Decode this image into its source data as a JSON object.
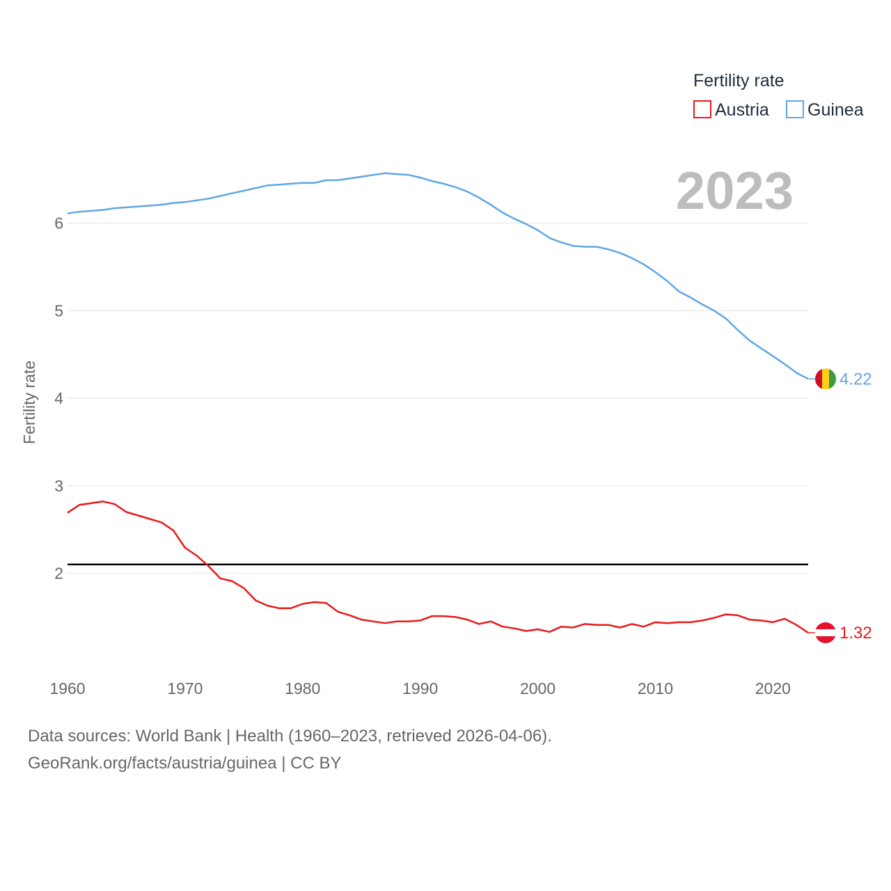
{
  "chart_data": {
    "type": "line",
    "year_label": "2023",
    "ylabel": "Fertility rate",
    "xlabel": "",
    "xlim": [
      1960,
      2023
    ],
    "ylim": [
      1.0,
      7.0
    ],
    "x_ticks": [
      1960,
      1970,
      1980,
      1990,
      2000,
      2010,
      2020
    ],
    "y_ticks": [
      2,
      3,
      4,
      5,
      6
    ],
    "legend": {
      "title": "Fertility rate",
      "position": "top-right"
    },
    "reference_line": {
      "value": 2.1,
      "color": "#000000"
    },
    "series": [
      {
        "name": "Austria",
        "color": "#e8191a",
        "end_value": 1.32,
        "end_label": "1.32",
        "flag": "austria-flag",
        "x": [
          1960,
          1961,
          1962,
          1963,
          1964,
          1965,
          1966,
          1967,
          1968,
          1969,
          1970,
          1971,
          1972,
          1973,
          1974,
          1975,
          1976,
          1977,
          1978,
          1979,
          1980,
          1981,
          1982,
          1983,
          1984,
          1985,
          1986,
          1987,
          1988,
          1989,
          1990,
          1991,
          1992,
          1993,
          1994,
          1995,
          1996,
          1997,
          1998,
          1999,
          2000,
          2001,
          2002,
          2003,
          2004,
          2005,
          2006,
          2007,
          2008,
          2009,
          2010,
          2011,
          2012,
          2013,
          2014,
          2015,
          2016,
          2017,
          2018,
          2019,
          2020,
          2021,
          2022,
          2023
        ],
        "values": [
          2.69,
          2.78,
          2.8,
          2.82,
          2.79,
          2.7,
          2.66,
          2.62,
          2.58,
          2.49,
          2.29,
          2.2,
          2.08,
          1.94,
          1.91,
          1.83,
          1.69,
          1.63,
          1.6,
          1.6,
          1.65,
          1.67,
          1.66,
          1.56,
          1.52,
          1.47,
          1.45,
          1.43,
          1.45,
          1.45,
          1.46,
          1.51,
          1.51,
          1.5,
          1.47,
          1.42,
          1.45,
          1.39,
          1.37,
          1.34,
          1.36,
          1.33,
          1.39,
          1.38,
          1.42,
          1.41,
          1.41,
          1.38,
          1.42,
          1.39,
          1.44,
          1.43,
          1.44,
          1.44,
          1.46,
          1.49,
          1.53,
          1.52,
          1.47,
          1.46,
          1.44,
          1.48,
          1.41,
          1.32
        ]
      },
      {
        "name": "Guinea",
        "color": "#5ea6e4",
        "end_value": 4.22,
        "end_label": "4.22",
        "flag": "guinea-flag",
        "x": [
          1960,
          1961,
          1962,
          1963,
          1964,
          1965,
          1966,
          1967,
          1968,
          1969,
          1970,
          1971,
          1972,
          1973,
          1974,
          1975,
          1976,
          1977,
          1978,
          1979,
          1980,
          1981,
          1982,
          1983,
          1984,
          1985,
          1986,
          1987,
          1988,
          1989,
          1990,
          1991,
          1992,
          1993,
          1994,
          1995,
          1996,
          1997,
          1998,
          1999,
          2000,
          2001,
          2002,
          2003,
          2004,
          2005,
          2006,
          2007,
          2008,
          2009,
          2010,
          2011,
          2012,
          2013,
          2014,
          2015,
          2016,
          2017,
          2018,
          2019,
          2020,
          2021,
          2022,
          2023
        ],
        "values": [
          6.11,
          6.13,
          6.14,
          6.15,
          6.17,
          6.18,
          6.19,
          6.2,
          6.21,
          6.23,
          6.24,
          6.26,
          6.28,
          6.31,
          6.34,
          6.37,
          6.4,
          6.43,
          6.44,
          6.45,
          6.46,
          6.46,
          6.49,
          6.49,
          6.51,
          6.53,
          6.55,
          6.57,
          6.56,
          6.55,
          6.52,
          6.48,
          6.45,
          6.41,
          6.36,
          6.29,
          6.21,
          6.12,
          6.05,
          5.99,
          5.92,
          5.83,
          5.78,
          5.74,
          5.73,
          5.73,
          5.7,
          5.66,
          5.6,
          5.53,
          5.44,
          5.34,
          5.22,
          5.15,
          5.07,
          5.0,
          4.91,
          4.78,
          4.66,
          4.57,
          4.48,
          4.39,
          4.29,
          4.22
        ]
      }
    ]
  },
  "footer": {
    "line1": "Data sources: World Bank | Health (1960–2023, retrieved 2026-04-06).",
    "line2": "GeoRank.org/facts/austria/guinea | CC BY"
  }
}
